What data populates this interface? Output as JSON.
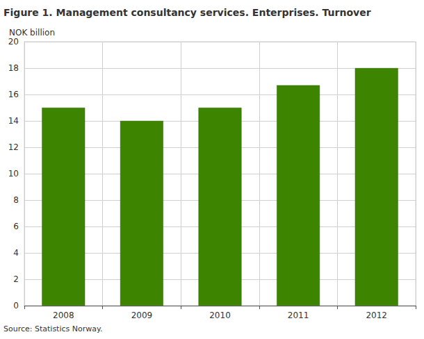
{
  "chart_data": {
    "type": "bar",
    "title": "Figure 1. Management consultancy services. Enterprises. Turnover",
    "y_label": "NOK billion",
    "source": "Source: Statistics Norway.",
    "categories": [
      "2008",
      "2009",
      "2010",
      "2011",
      "2012"
    ],
    "values": [
      15,
      14,
      15,
      16.7,
      18
    ],
    "color": "#3d8400",
    "ylim": [
      0,
      20
    ],
    "yticks": [
      0,
      2,
      4,
      6,
      8,
      10,
      12,
      14,
      16,
      18,
      20
    ],
    "grid": true
  }
}
